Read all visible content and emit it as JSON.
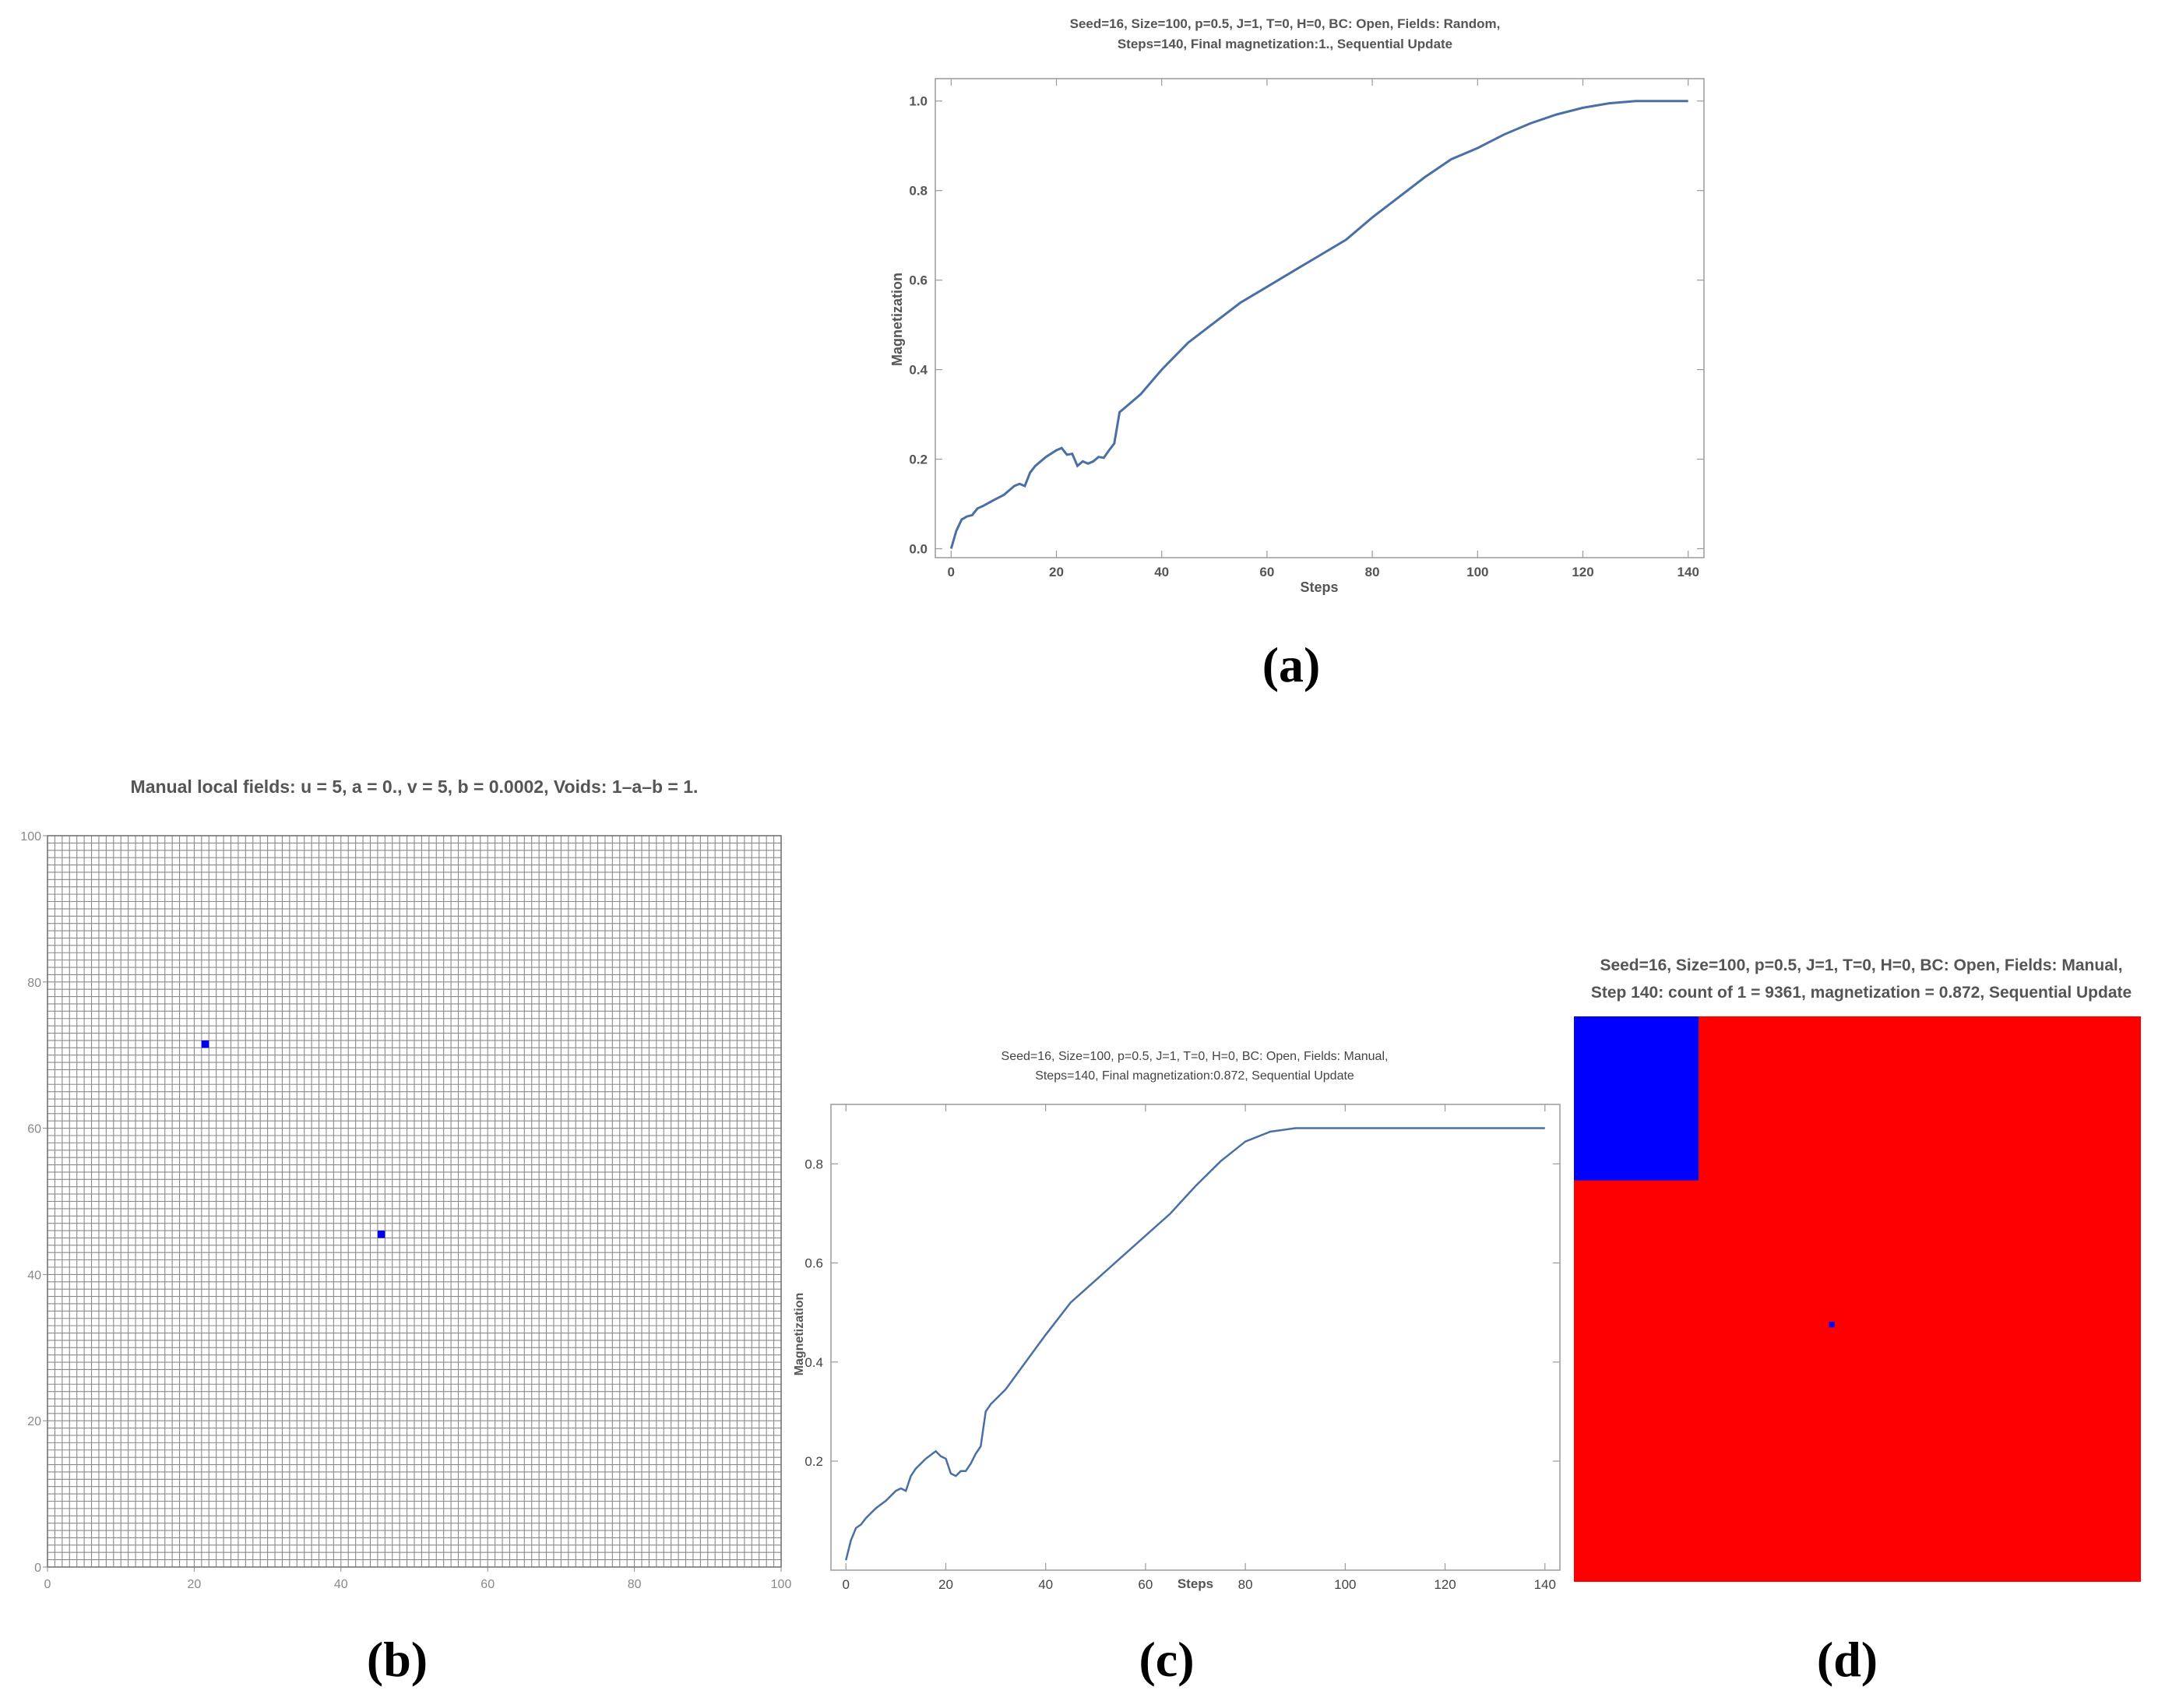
{
  "chart_data": [
    {
      "panel": "(a)",
      "type": "line",
      "title_lines": [
        "Seed=16, Size=100, p=0.5, J=1, T=0, H=0, BC: Open, Fields: Random,",
        "Steps=140, Final magnetization:1., Sequential Update"
      ],
      "xlabel": "Steps",
      "ylabel": "Magnetization",
      "xlim": [
        -3,
        143
      ],
      "ylim": [
        -0.02,
        1.05
      ],
      "xticks": [
        0,
        20,
        40,
        60,
        80,
        100,
        120,
        140
      ],
      "xtick_labels": [
        "0",
        "20",
        "40",
        "60",
        "80",
        "100",
        "120",
        "140"
      ],
      "yticks": [
        0,
        0.2,
        0.4,
        0.6,
        0.8,
        1.0
      ],
      "ytick_labels": [
        "0.0",
        "0.2",
        "0.4",
        "0.6",
        "0.8",
        "1.0"
      ],
      "grid": false,
      "series": [
        {
          "color": "#4a6fa5",
          "x": [
            0,
            1,
            2,
            3,
            4,
            5,
            6,
            8,
            10,
            12,
            13,
            14,
            15,
            16,
            18,
            20,
            21,
            22,
            23,
            24,
            25,
            26,
            27,
            28,
            29,
            30,
            31,
            32,
            33,
            36,
            40,
            45,
            50,
            55,
            60,
            65,
            70,
            75,
            80,
            85,
            90,
            95,
            100,
            105,
            110,
            115,
            120,
            125,
            130,
            135,
            140
          ],
          "y": [
            0.0,
            0.04,
            0.065,
            0.072,
            0.075,
            0.09,
            0.095,
            0.108,
            0.12,
            0.14,
            0.145,
            0.14,
            0.17,
            0.185,
            0.205,
            0.22,
            0.225,
            0.21,
            0.212,
            0.185,
            0.195,
            0.19,
            0.195,
            0.205,
            0.203,
            0.22,
            0.235,
            0.305,
            0.315,
            0.345,
            0.4,
            0.46,
            0.505,
            0.55,
            0.585,
            0.62,
            0.655,
            0.69,
            0.74,
            0.785,
            0.83,
            0.87,
            0.895,
            0.925,
            0.95,
            0.97,
            0.985,
            0.995,
            1.0,
            1.0,
            1.0
          ]
        }
      ]
    },
    {
      "panel": "(b)",
      "type": "heatmap",
      "title": "Manual local fields: u = 5, a = 0., v = 5, b = 0.0002, Voids: 1–a–b = 1.",
      "size": 100,
      "xlim": [
        0,
        100
      ],
      "ylim": [
        0,
        100
      ],
      "xticks": [
        0,
        20,
        40,
        60,
        80,
        100
      ],
      "xtick_labels": [
        "0",
        "20",
        "40",
        "60",
        "80",
        "100"
      ],
      "yticks": [
        0,
        20,
        40,
        60,
        80,
        100
      ],
      "ytick_labels": [
        "0",
        "20",
        "40",
        "60",
        "80",
        "100"
      ],
      "grid": true,
      "grid_color": "#8a8a8a",
      "marked_cells": [
        {
          "x": 21,
          "y": 71,
          "color": "#0000ee"
        },
        {
          "x": 45,
          "y": 45,
          "color": "#0000ee"
        }
      ]
    },
    {
      "panel": "(c)",
      "type": "line",
      "title_lines": [
        "Seed=16, Size=100, p=0.5, J=1, T=0, H=0, BC: Open, Fields: Manual,",
        "Steps=140, Final magnetization:0.872, Sequential Update"
      ],
      "xlabel": "Steps",
      "ylabel": "Magnetization",
      "xlim": [
        -3,
        143
      ],
      "ylim": [
        -0.02,
        0.92
      ],
      "xticks": [
        0,
        20,
        40,
        60,
        80,
        100,
        120,
        140
      ],
      "xtick_labels": [
        "0",
        "20",
        "40",
        "60",
        "80",
        "100",
        "120",
        "140"
      ],
      "yticks": [
        0.2,
        0.4,
        0.6,
        0.8
      ],
      "ytick_labels": [
        "0.2",
        "0.4",
        "0.6",
        "0.8"
      ],
      "grid": false,
      "series": [
        {
          "color": "#4a6fa5",
          "x": [
            0,
            1,
            2,
            3,
            4,
            5,
            6,
            8,
            10,
            11,
            12,
            13,
            14,
            16,
            18,
            19,
            20,
            21,
            22,
            23,
            24,
            25,
            26,
            27,
            28,
            29,
            32,
            36,
            40,
            45,
            50,
            55,
            60,
            65,
            70,
            75,
            80,
            85,
            90,
            95,
            100,
            110,
            120,
            130,
            140
          ],
          "y": [
            0.0,
            0.04,
            0.065,
            0.072,
            0.085,
            0.095,
            0.105,
            0.12,
            0.14,
            0.145,
            0.14,
            0.17,
            0.185,
            0.205,
            0.22,
            0.21,
            0.205,
            0.175,
            0.17,
            0.18,
            0.18,
            0.195,
            0.215,
            0.23,
            0.3,
            0.315,
            0.345,
            0.4,
            0.455,
            0.52,
            0.565,
            0.61,
            0.655,
            0.7,
            0.755,
            0.805,
            0.845,
            0.865,
            0.872,
            0.872,
            0.872,
            0.872,
            0.872,
            0.872,
            0.872
          ]
        }
      ]
    },
    {
      "panel": "(d)",
      "type": "heatmap",
      "title_lines": [
        "Seed=16, Size=100, p=0.5, J=1, T=0, H=0, BC: Open, Fields: Manual,",
        "Step 140: count of 1 = 9361, magnetization = 0.872, Sequential Update"
      ],
      "size": 100,
      "background_color": "#ff0000",
      "regions": [
        {
          "x_from": 0,
          "x_to": 22,
          "y_from": 71,
          "y_to": 100,
          "color": "#0000ff"
        }
      ],
      "marked_cells": [
        {
          "x": 45,
          "y": 45,
          "color": "#0000ff"
        }
      ]
    }
  ],
  "captions": [
    "(a)",
    "(b)",
    "(c)",
    "(d)"
  ]
}
